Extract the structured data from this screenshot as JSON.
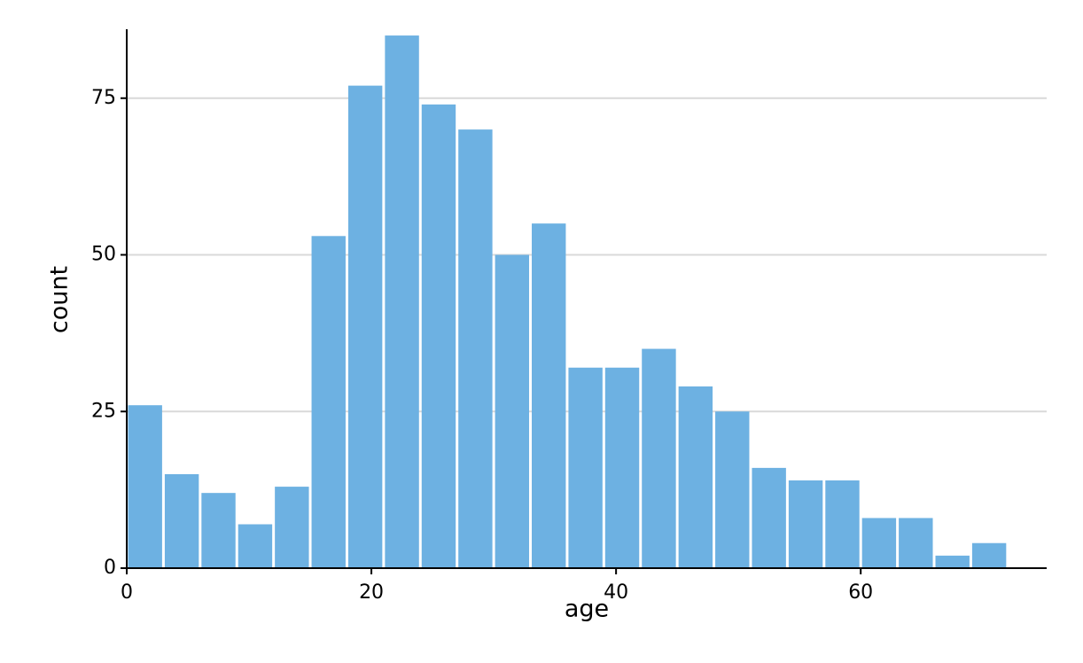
{
  "chart_data": {
    "type": "histogram",
    "x_label": "age",
    "y_label": "count",
    "bins": [
      0,
      3,
      6,
      9,
      12,
      15,
      18,
      21,
      24,
      27,
      30,
      33,
      36,
      39,
      42,
      45,
      48,
      51,
      54,
      57,
      60,
      63,
      66,
      69,
      72
    ],
    "values": [
      26,
      15,
      12,
      7,
      13,
      53,
      77,
      85,
      74,
      70,
      50,
      55,
      32,
      32,
      35,
      29,
      25,
      16,
      14,
      14,
      8,
      8,
      2,
      4
    ],
    "color": "#6db1e2",
    "xlim": [
      0,
      75.2
    ],
    "xticks": [
      0,
      20,
      40,
      60
    ],
    "ylim": [
      0,
      86
    ],
    "yticks": [
      0,
      25,
      50,
      75
    ],
    "grid": true
  }
}
